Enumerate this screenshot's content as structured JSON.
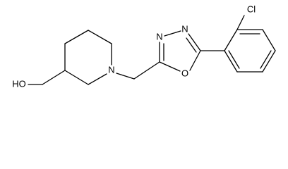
{
  "atoms": [
    "Cl",
    "N",
    "N",
    "O",
    "N",
    "HO"
  ]
}
